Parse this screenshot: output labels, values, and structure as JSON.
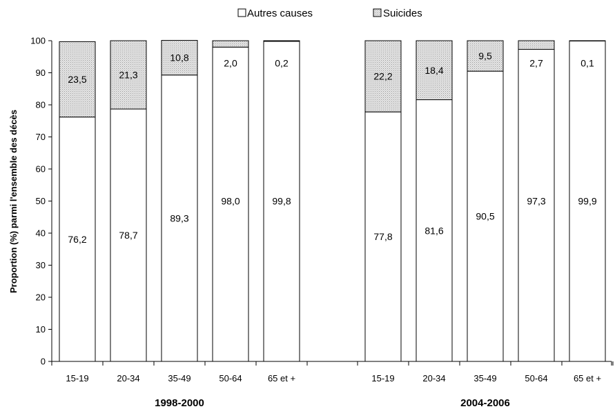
{
  "chart_data": {
    "type": "bar",
    "stacked": true,
    "ylabel": "Proportion (%) parmi l'ensemble des décès",
    "ylim": [
      0,
      100
    ],
    "yticks": [
      0,
      10,
      20,
      30,
      40,
      50,
      60,
      70,
      80,
      90,
      100
    ],
    "legend_position": "top",
    "grid": false,
    "series": [
      {
        "name": "Autres causes",
        "color": "#ffffff",
        "pattern": "none"
      },
      {
        "name": "Suicides",
        "color": "#d4d4d4",
        "pattern": "dots"
      }
    ],
    "groups": [
      {
        "label": "1998-2000",
        "categories": [
          "15-19",
          "20-34",
          "35-49",
          "50-64",
          "65 et +"
        ],
        "autres": [
          76.2,
          78.7,
          89.3,
          98.0,
          99.8
        ],
        "suicides": [
          23.5,
          21.3,
          10.8,
          2.0,
          0.2
        ],
        "autres_labels": [
          "76,2",
          "78,7",
          "89,3",
          "98,0",
          "99,8"
        ],
        "suicides_labels": [
          "23,5",
          "21,3",
          "10,8",
          "2,0",
          "0,2"
        ]
      },
      {
        "label": "2004-2006",
        "categories": [
          "15-19",
          "20-34",
          "35-49",
          "50-64",
          "65 et +"
        ],
        "autres": [
          77.8,
          81.6,
          90.5,
          97.3,
          99.9
        ],
        "suicides": [
          22.2,
          18.4,
          9.5,
          2.7,
          0.1
        ],
        "autres_labels": [
          "77,8",
          "81,6",
          "90,5",
          "97,3",
          "99,9"
        ],
        "suicides_labels": [
          "22,2",
          "18,4",
          "9,5",
          "2,7",
          "0,1"
        ]
      }
    ]
  }
}
